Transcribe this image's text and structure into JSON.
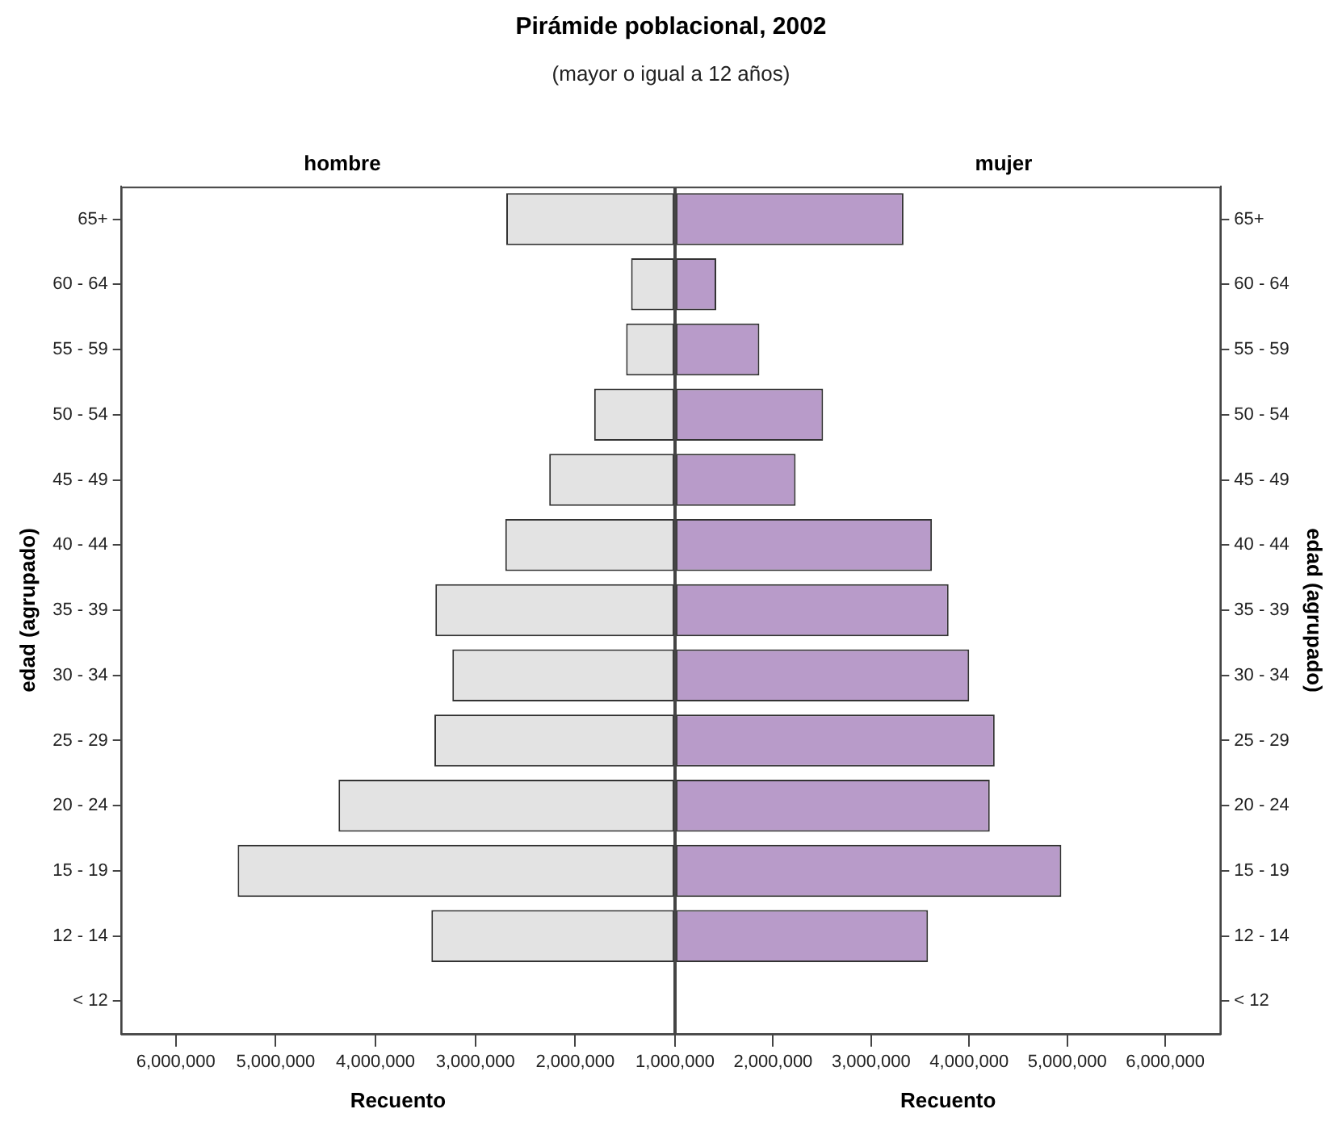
{
  "chart_data": [
    {
      "type": "bar",
      "orientation": "horizontal",
      "title": "Pirámide poblacional, 2002",
      "subtitle": "(mayor o igual a 12 años)",
      "xlabel": "Recuento",
      "ylabel": "edad (agrupado)",
      "categories": [
        "65+",
        "60 - 64",
        "55 - 59",
        "50 - 54",
        "45 - 49",
        "40 - 44",
        "35 - 39",
        "30 - 34",
        "25 - 29",
        "20 - 24",
        "15 - 19",
        "12 - 14",
        "< 12"
      ],
      "series": [
        {
          "name": "hombre",
          "color": "#e3e3e3",
          "values": [
            2690000,
            1440000,
            1490000,
            1810000,
            2260000,
            2700000,
            3400000,
            3230000,
            3410000,
            4370000,
            5380000,
            3440000,
            null
          ]
        }
      ],
      "xlim": [
        6550000,
        1000000
      ],
      "xticks": [
        {
          "value": 1000000,
          "label": "1,000,000"
        },
        {
          "value": 2000000,
          "label": "2,000,000"
        },
        {
          "value": 3000000,
          "label": "3,000,000"
        },
        {
          "value": 4000000,
          "label": "4,000,000"
        },
        {
          "value": 5000000,
          "label": "5,000,000"
        },
        {
          "value": 6000000,
          "label": "6,000,000"
        }
      ],
      "grid": false,
      "legend": false
    },
    {
      "type": "bar",
      "orientation": "horizontal",
      "xlabel": "Recuento",
      "ylabel": "edad (agrupado)",
      "categories": [
        "65+",
        "60 - 64",
        "55 - 59",
        "50 - 54",
        "45 - 49",
        "40 - 44",
        "35 - 39",
        "30 - 34",
        "25 - 29",
        "20 - 24",
        "15 - 19",
        "12 - 14",
        "< 12"
      ],
      "series": [
        {
          "name": "mujer",
          "color": "#b89bc9",
          "values": [
            3330000,
            1420000,
            1860000,
            2510000,
            2230000,
            3620000,
            3790000,
            4000000,
            4260000,
            4210000,
            4940000,
            3580000,
            null
          ]
        }
      ],
      "xlim": [
        1000000,
        6570000
      ],
      "xticks": [
        {
          "value": 1000000,
          "label": null
        },
        {
          "value": 2000000,
          "label": "2,000,000"
        },
        {
          "value": 3000000,
          "label": "3,000,000"
        },
        {
          "value": 4000000,
          "label": "4,000,000"
        },
        {
          "value": 5000000,
          "label": "5,000,000"
        },
        {
          "value": 6000000,
          "label": "6,000,000"
        }
      ],
      "grid": false,
      "legend": false
    }
  ]
}
